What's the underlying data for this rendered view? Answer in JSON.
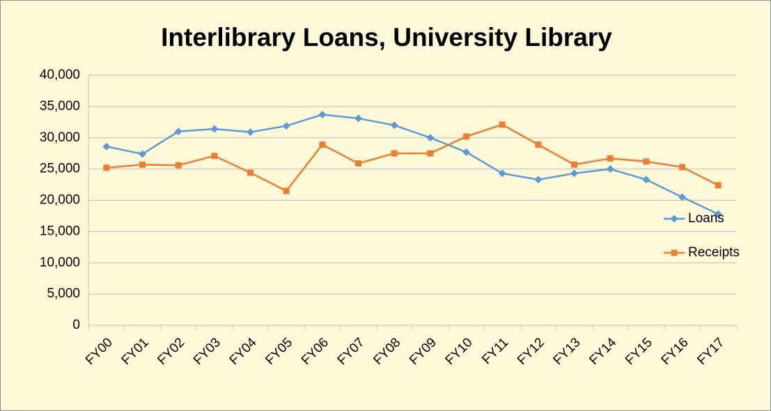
{
  "chart_data": {
    "type": "line",
    "title": "Interlibrary Loans, University Library",
    "categories": [
      "FY00",
      "FY01",
      "FY02",
      "FY03",
      "FY04",
      "FY05",
      "FY06",
      "FY07",
      "FY08",
      "FY09",
      "FY10",
      "FY11",
      "FY12",
      "FY13",
      "FY14",
      "FY15",
      "FY16",
      "FY17"
    ],
    "series": [
      {
        "name": "Loans",
        "color": "#5b9bd5",
        "marker": "diamond",
        "values": [
          28600,
          27400,
          31000,
          31400,
          30900,
          31900,
          33700,
          33100,
          32000,
          30000,
          27700,
          24300,
          23300,
          24300,
          25000,
          23300,
          20500,
          17800
        ]
      },
      {
        "name": "Receipts",
        "color": "#ed7d31",
        "marker": "square",
        "values": [
          25200,
          25700,
          25600,
          27100,
          24400,
          21500,
          28900,
          25900,
          27500,
          27500,
          30200,
          32100,
          28900,
          25700,
          26700,
          26200,
          25300,
          22400
        ]
      }
    ],
    "ylim": [
      0,
      40000
    ],
    "yticks": [
      0,
      {
        "value": 5000,
        "label": "5,000"
      },
      {
        "value": 10000,
        "label": "10,000"
      },
      {
        "value": 15000,
        "label": "15,000"
      },
      {
        "value": 20000,
        "label": "20,000"
      },
      {
        "value": 25000,
        "label": "25,000"
      },
      {
        "value": 30000,
        "label": "30,000"
      },
      {
        "value": 35000,
        "label": "35,000"
      },
      {
        "value": 40000,
        "label": "40,000"
      }
    ],
    "grid": true,
    "legend": "right",
    "background": "#fdf9d8"
  }
}
